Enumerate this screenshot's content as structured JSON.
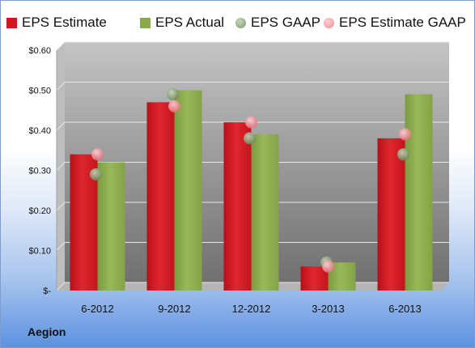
{
  "chart_data": {
    "type": "bar",
    "categories": [
      "6-2012",
      "9-2012",
      "12-2012",
      "3-2013",
      "6-2013"
    ],
    "series": [
      {
        "name": "EPS Estimate",
        "kind": "bar",
        "color": "#d0161f",
        "values": [
          0.34,
          0.47,
          0.42,
          0.06,
          0.38
        ]
      },
      {
        "name": "EPS Actual",
        "kind": "bar",
        "color": "#8aaa4a",
        "values": [
          0.32,
          0.5,
          0.39,
          0.07,
          0.49
        ]
      },
      {
        "name": "EPS GAAP",
        "kind": "marker",
        "color": "#7d9a6a",
        "values": [
          0.29,
          0.49,
          0.38,
          0.07,
          0.34
        ]
      },
      {
        "name": "EPS Estimate GAAP",
        "kind": "marker",
        "color": "#ef8a92",
        "values": [
          0.34,
          0.46,
          0.42,
          0.06,
          0.39
        ]
      }
    ],
    "ylim": [
      0,
      0.6
    ],
    "yticks": [
      0,
      0.1,
      0.2,
      0.3,
      0.4,
      0.5,
      0.6
    ],
    "ytick_labels": [
      "$-",
      "$0.10",
      "$0.20",
      "$0.30",
      "$0.40",
      "$0.50",
      "$0.60"
    ],
    "grid": true,
    "legend_position": "top",
    "title": "",
    "xlabel": "",
    "ylabel": ""
  },
  "company_label": "Aegion",
  "colors": {
    "plot_background_top": "#c4c4c4",
    "plot_background_bottom": "#707070",
    "gridline": "#e8e8e8"
  }
}
